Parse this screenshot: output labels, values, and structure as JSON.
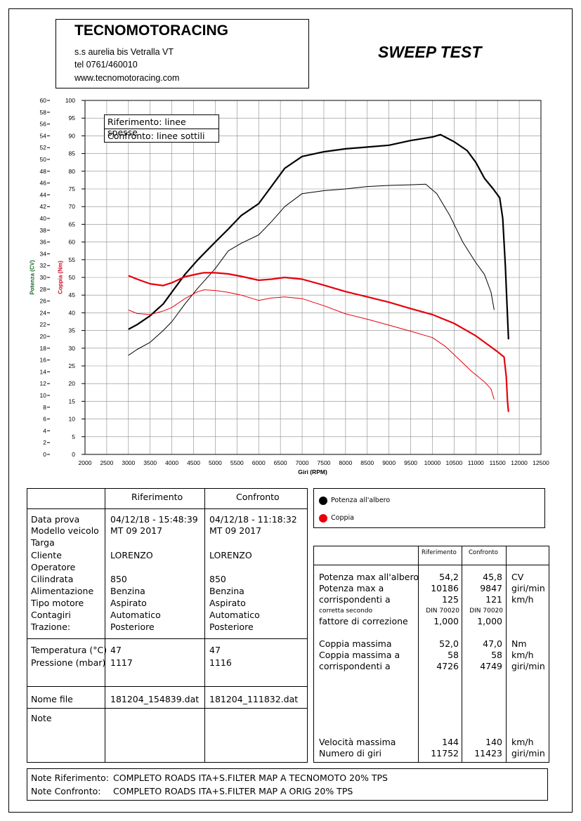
{
  "header": {
    "company": "TECNOMOTORACING",
    "address": "s.s aurelia bis  Vetralla  VT",
    "phone": "tel 0761/460010",
    "website": "www.tecnomotoracing.com",
    "title": "SWEEP TEST"
  },
  "legend_box": {
    "line1": "Riferimento: linee spesse",
    "line2": "Confronto: linee sottili"
  },
  "chart_data": {
    "type": "line",
    "xlabel": "Giri (RPM)",
    "ylabel_power": "Potenza (CV)",
    "ylabel_torque": "Coppia (Nm)",
    "xlim": [
      2000,
      12500
    ],
    "x_ticks": [
      "2000",
      "2500",
      "3000",
      "3500",
      "4000",
      "4500",
      "5000",
      "5500",
      "6000",
      "6500",
      "7000",
      "7500",
      "8000",
      "8500",
      "9000",
      "9500",
      "10000",
      "10500",
      "11000",
      "11500",
      "12000",
      "12500"
    ],
    "ylim_power": [
      0,
      60
    ],
    "y_ticks_power": [
      "0",
      "2",
      "4",
      "6",
      "8",
      "10",
      "12",
      "14",
      "16",
      "18",
      "20",
      "22",
      "24",
      "26",
      "28",
      "30",
      "32",
      "34",
      "36",
      "38",
      "40",
      "42",
      "44",
      "46",
      "48",
      "50",
      "52",
      "54",
      "56",
      "58",
      "60"
    ],
    "ylim_torque": [
      0,
      100
    ],
    "y_ticks_torque": [
      "0",
      "5",
      "10",
      "15",
      "20",
      "25",
      "30",
      "35",
      "40",
      "45",
      "50",
      "55",
      "60",
      "65",
      "70",
      "75",
      "80",
      "85",
      "90",
      "95",
      "100"
    ],
    "grid": true,
    "series": [
      {
        "name": "Potenza all'albero",
        "role": "Riferimento",
        "axis": "power",
        "color": "#000000",
        "width": "thick",
        "points": [
          [
            3000,
            21.2
          ],
          [
            3200,
            22.0
          ],
          [
            3500,
            23.5
          ],
          [
            3800,
            25.5
          ],
          [
            4000,
            27.5
          ],
          [
            4300,
            30.5
          ],
          [
            4600,
            33.0
          ],
          [
            5000,
            36.0
          ],
          [
            5300,
            38.2
          ],
          [
            5600,
            40.5
          ],
          [
            6000,
            42.5
          ],
          [
            6300,
            45.5
          ],
          [
            6600,
            48.5
          ],
          [
            7000,
            50.5
          ],
          [
            7500,
            51.3
          ],
          [
            8000,
            51.8
          ],
          [
            8500,
            52.1
          ],
          [
            9000,
            52.4
          ],
          [
            9500,
            53.2
          ],
          [
            10000,
            53.8
          ],
          [
            10186,
            54.2
          ],
          [
            10500,
            53.0
          ],
          [
            10800,
            51.5
          ],
          [
            11000,
            49.5
          ],
          [
            11200,
            46.8
          ],
          [
            11400,
            45.0
          ],
          [
            11550,
            43.5
          ],
          [
            11620,
            40.0
          ],
          [
            11680,
            32.0
          ],
          [
            11720,
            25.0
          ],
          [
            11752,
            19.5
          ]
        ]
      },
      {
        "name": "Potenza all'albero",
        "role": "Confronto",
        "axis": "power",
        "color": "#000000",
        "width": "thin",
        "points": [
          [
            3000,
            16.8
          ],
          [
            3200,
            17.8
          ],
          [
            3500,
            19.0
          ],
          [
            3800,
            21.0
          ],
          [
            4000,
            22.5
          ],
          [
            4300,
            25.5
          ],
          [
            4600,
            28.2
          ],
          [
            5000,
            31.5
          ],
          [
            5300,
            34.5
          ],
          [
            5600,
            35.8
          ],
          [
            6000,
            37.2
          ],
          [
            6300,
            39.5
          ],
          [
            6600,
            42.0
          ],
          [
            7000,
            44.2
          ],
          [
            7500,
            44.7
          ],
          [
            8000,
            45.0
          ],
          [
            8500,
            45.4
          ],
          [
            9000,
            45.6
          ],
          [
            9500,
            45.7
          ],
          [
            9847,
            45.8
          ],
          [
            10100,
            44.2
          ],
          [
            10400,
            40.5
          ],
          [
            10700,
            36.0
          ],
          [
            11000,
            32.5
          ],
          [
            11200,
            30.5
          ],
          [
            11350,
            27.5
          ],
          [
            11423,
            24.5
          ]
        ]
      },
      {
        "name": "Coppia",
        "role": "Riferimento",
        "axis": "torque",
        "color": "#e8000b",
        "width": "thick",
        "points": [
          [
            3000,
            50.5
          ],
          [
            3200,
            49.5
          ],
          [
            3500,
            48.2
          ],
          [
            3800,
            47.7
          ],
          [
            4000,
            48.5
          ],
          [
            4300,
            50.2
          ],
          [
            4600,
            51.0
          ],
          [
            4726,
            51.3
          ],
          [
            5000,
            51.3
          ],
          [
            5300,
            51.0
          ],
          [
            5600,
            50.3
          ],
          [
            6000,
            49.2
          ],
          [
            6300,
            49.5
          ],
          [
            6600,
            50.0
          ],
          [
            7000,
            49.5
          ],
          [
            7500,
            47.8
          ],
          [
            8000,
            46.0
          ],
          [
            8500,
            44.5
          ],
          [
            9000,
            43.0
          ],
          [
            9500,
            41.2
          ],
          [
            10000,
            39.5
          ],
          [
            10500,
            37.0
          ],
          [
            11000,
            33.5
          ],
          [
            11300,
            30.8
          ],
          [
            11500,
            29.0
          ],
          [
            11650,
            27.5
          ],
          [
            11700,
            22.0
          ],
          [
            11730,
            15.0
          ],
          [
            11752,
            12.0
          ]
        ]
      },
      {
        "name": "Coppia",
        "role": "Confronto",
        "axis": "torque",
        "color": "#e8000b",
        "width": "thin",
        "points": [
          [
            3000,
            40.8
          ],
          [
            3200,
            39.8
          ],
          [
            3500,
            39.5
          ],
          [
            3800,
            40.5
          ],
          [
            4000,
            41.5
          ],
          [
            4300,
            44.0
          ],
          [
            4600,
            46.0
          ],
          [
            4749,
            46.5
          ],
          [
            5000,
            46.3
          ],
          [
            5300,
            45.8
          ],
          [
            5600,
            45.0
          ],
          [
            6000,
            43.5
          ],
          [
            6300,
            44.2
          ],
          [
            6600,
            44.5
          ],
          [
            7000,
            44.0
          ],
          [
            7500,
            42.0
          ],
          [
            8000,
            39.7
          ],
          [
            8500,
            38.2
          ],
          [
            9000,
            36.5
          ],
          [
            9500,
            34.8
          ],
          [
            10000,
            33.0
          ],
          [
            10300,
            30.5
          ],
          [
            10600,
            27.0
          ],
          [
            10900,
            23.5
          ],
          [
            11200,
            20.5
          ],
          [
            11350,
            18.5
          ],
          [
            11423,
            15.5
          ]
        ]
      }
    ]
  },
  "series_legend": {
    "power": "Potenza all'albero",
    "torque": "Coppia",
    "power_color": "#000000",
    "torque_color": "#e8000b"
  },
  "left_table": {
    "col_ref": "Riferimento",
    "col_conf": "Confronto",
    "rows": [
      {
        "label": "Data prova",
        "ref": "04/12/18 - 15:48:39",
        "conf": "04/12/18 - 11:18:32"
      },
      {
        "label": "Modello veicolo",
        "ref": "MT 09 2017",
        "conf": "MT 09 2017"
      },
      {
        "label": "Targa",
        "ref": "",
        "conf": ""
      },
      {
        "label": "Cliente",
        "ref": "LORENZO",
        "conf": "LORENZO"
      },
      {
        "label": "Operatore",
        "ref": "",
        "conf": ""
      },
      {
        "label": "Cilindrata",
        "ref": "850",
        "conf": "850"
      },
      {
        "label": "Alimentazione",
        "ref": "Benzina",
        "conf": "Benzina"
      },
      {
        "label": "Tipo motore",
        "ref": "Aspirato",
        "conf": "Aspirato"
      },
      {
        "label": "Contagiri",
        "ref": "Automatico",
        "conf": "Automatico"
      },
      {
        "label": "Trazione:",
        "ref": "Posteriore",
        "conf": "Posteriore"
      }
    ],
    "env_rows": [
      {
        "label": "Temperatura (°C)",
        "ref": "47",
        "conf": "47"
      },
      {
        "label": "Pressione (mbar)",
        "ref": "1117",
        "conf": "1116"
      }
    ],
    "file_label": "Nome file",
    "file_ref": "181204_154839.dat",
    "file_conf": "181204_111832.dat",
    "note_label": "Note"
  },
  "right_table": {
    "col_ref": "Riferimento",
    "col_conf": "Confronto",
    "rows": [
      {
        "label": "Potenza max all'albero",
        "ref": "54,2",
        "conf": "45,8",
        "unit": "CV"
      },
      {
        "label": "Potenza max a",
        "ref": "10186",
        "conf": "9847",
        "unit": "giri/min"
      },
      {
        "label": "corrispondenti a",
        "ref": "125",
        "conf": "121",
        "unit": "km/h"
      },
      {
        "label": "corretta secondo",
        "ref": "DIN 70020",
        "conf": "DIN 70020",
        "unit": ""
      },
      {
        "label": "fattore di correzione",
        "ref": "1,000",
        "conf": "1,000",
        "unit": ""
      },
      {
        "label": "Coppia massima",
        "ref": "52,0",
        "conf": "47,0",
        "unit": "Nm"
      },
      {
        "label": "Coppia massima a",
        "ref": "58",
        "conf": "58",
        "unit": "km/h"
      },
      {
        "label": "corrispondenti a",
        "ref": "4726",
        "conf": "4749",
        "unit": "giri/min"
      },
      {
        "label": "Velocità massima",
        "ref": "144",
        "conf": "140",
        "unit": "km/h"
      },
      {
        "label": "Numero di giri",
        "ref": "11752",
        "conf": "11423",
        "unit": "giri/min"
      }
    ]
  },
  "notes": {
    "ref_label": "Note Riferimento:",
    "ref_text": "COMPLETO ROADS ITA+S.FILTER MAP A TECNOMOTO 20% TPS",
    "conf_label": "Note Confronto:",
    "conf_text": "COMPLETO ROADS ITA+S.FILTER MAP A ORIG 20% TPS"
  }
}
